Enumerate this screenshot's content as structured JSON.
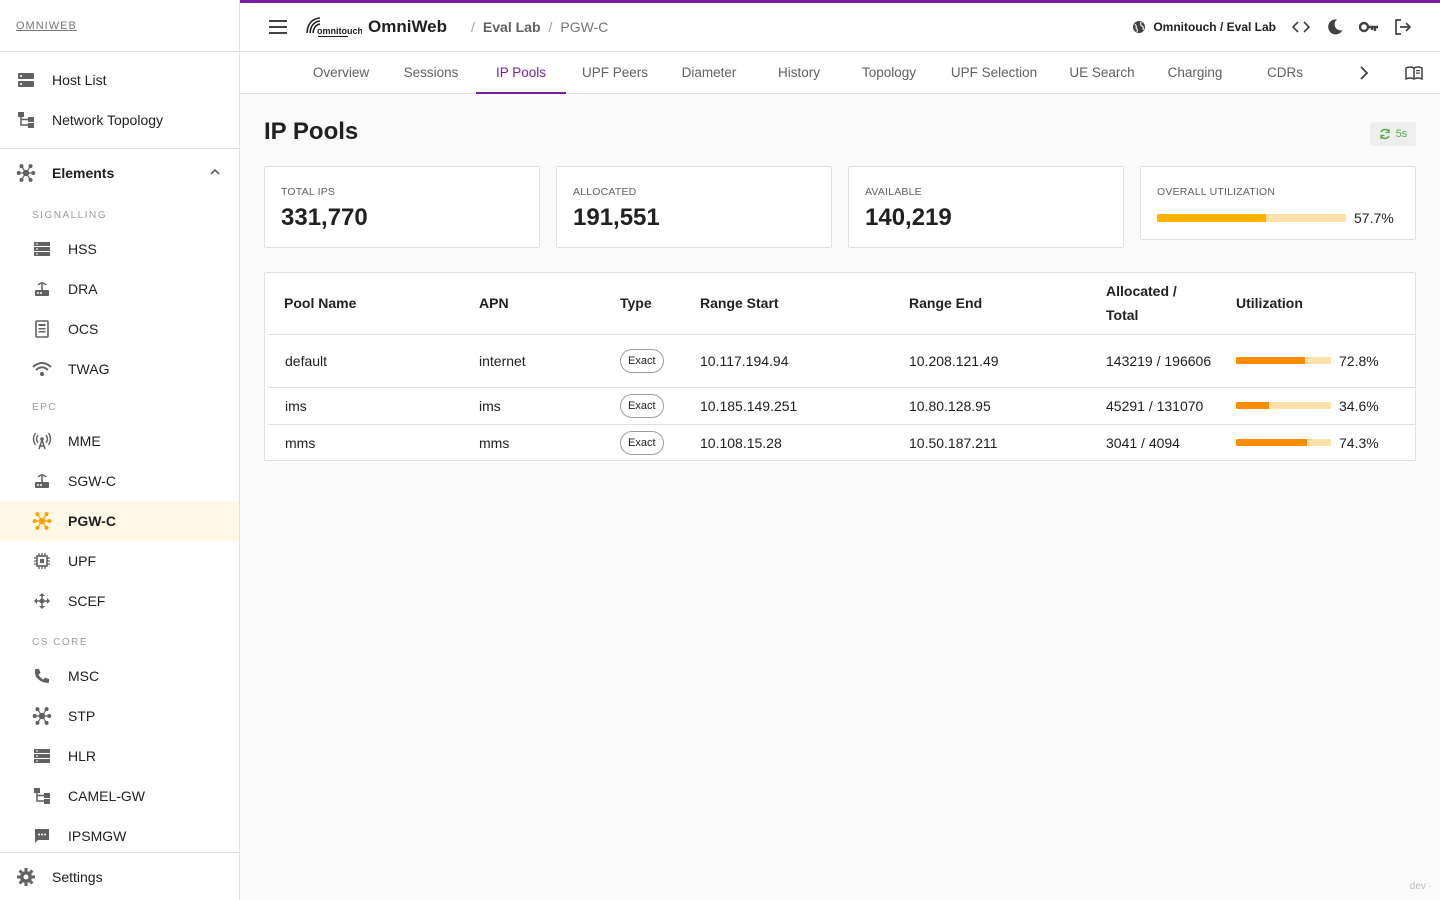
{
  "brand": "OMNIWEB",
  "sidebar": {
    "top_items": [
      {
        "label": "Host List",
        "icon": "host-list-icon"
      },
      {
        "label": "Network Topology",
        "icon": "topology-icon"
      }
    ],
    "elements_label": "Elements",
    "sections": [
      {
        "label": "SIGNALLING",
        "items": [
          {
            "label": "HSS",
            "icon": "server-icon"
          },
          {
            "label": "DRA",
            "icon": "router-icon"
          },
          {
            "label": "OCS",
            "icon": "billing-icon"
          },
          {
            "label": "TWAG",
            "icon": "wifi-icon"
          }
        ]
      },
      {
        "label": "EPC",
        "items": [
          {
            "label": "MME",
            "icon": "antenna-icon"
          },
          {
            "label": "SGW-C",
            "icon": "router-icon"
          },
          {
            "label": "PGW-C",
            "icon": "hub-icon",
            "active": true
          },
          {
            "label": "UPF",
            "icon": "chip-icon"
          },
          {
            "label": "SCEF",
            "icon": "move-icon"
          }
        ]
      },
      {
        "label": "CS CORE",
        "items": [
          {
            "label": "MSC",
            "icon": "phone-icon"
          },
          {
            "label": "STP",
            "icon": "hub-icon"
          },
          {
            "label": "HLR",
            "icon": "server-icon"
          },
          {
            "label": "CAMEL-GW",
            "icon": "topology-icon"
          },
          {
            "label": "IPSMGW",
            "icon": "sms-icon"
          }
        ]
      }
    ],
    "settings_label": "Settings"
  },
  "topbar": {
    "app_name": "OmniWeb",
    "logo_text": "omnitouch",
    "breadcrumb": [
      "Eval Lab",
      "PGW-C"
    ],
    "tenant": "Omnitouch / Eval Lab"
  },
  "tabs": [
    "Overview",
    "Sessions",
    "IP Pools",
    "UPF Peers",
    "Diameter",
    "History",
    "Topology",
    "UPF Selection",
    "UE Search",
    "Charging",
    "CDRs"
  ],
  "active_tab": "IP Pools",
  "page": {
    "title": "IP Pools",
    "refresh": "5s"
  },
  "stats": {
    "total_label": "TOTAL IPS",
    "total": "331,770",
    "allocated_label": "ALLOCATED",
    "allocated": "191,551",
    "available_label": "AVAILABLE",
    "available": "140,219",
    "util_label": "OVERALL UTILIZATION",
    "util_text": "57.7%",
    "util_value": 0.577
  },
  "colors": {
    "accent": "#7b1fa2",
    "bar_fill": "#ffb300",
    "bar_fill_row": "#fb8c00",
    "bar_track": "#ffe0a8",
    "refresh": "#4caf50"
  },
  "table": {
    "headers": [
      "Pool Name",
      "APN",
      "Type",
      "Range Start",
      "Range End",
      "Allocated / Total",
      "Utilization"
    ],
    "rows": [
      {
        "name": "default",
        "apn": "internet",
        "type": "Exact",
        "start": "10.117.194.94",
        "end": "10.208.121.49",
        "alloc": "143219 / 196606",
        "util_text": "72.8%",
        "util": 0.728
      },
      {
        "name": "ims",
        "apn": "ims",
        "type": "Exact",
        "start": "10.185.149.251",
        "end": "10.80.128.95",
        "alloc": "45291 / 131070",
        "util_text": "34.6%",
        "util": 0.346
      },
      {
        "name": "mms",
        "apn": "mms",
        "type": "Exact",
        "start": "10.108.15.28",
        "end": "10.50.187.211",
        "alloc": "3041 / 4094",
        "util_text": "74.3%",
        "util": 0.743
      }
    ]
  },
  "footer": "dev ·"
}
